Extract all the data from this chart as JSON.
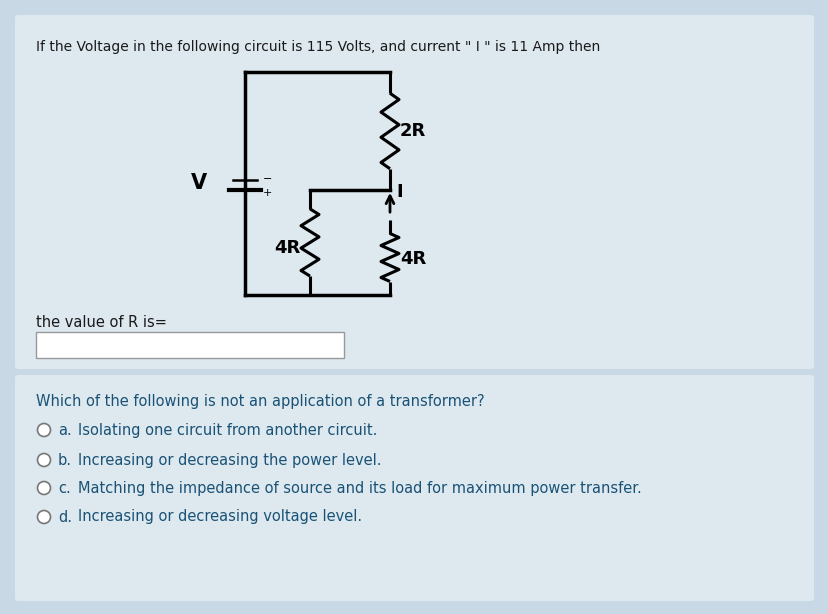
{
  "page_bg": "#c8d8e4",
  "top_section_bg": "#dde8ef",
  "bottom_section_bg": "#dde8ef",
  "title_q1": "If the Voltage in the following circuit is 115 Volts, and current \" I \" is 11 Amp then",
  "title_q1_color": "#1a1a1a",
  "label_value_of_R": "the value of R is=",
  "circuit_line_color": "#000000",
  "resistor_color": "#000000",
  "label_2R": "2R",
  "label_4R_left": "4R",
  "label_4R_right": "4R",
  "label_V": "V",
  "label_I": "I",
  "q2_text": "Which of the following is not an application of a transformer?",
  "q2_color": "#1a5276",
  "options": [
    {
      "letter": "a.",
      "text": "Isolating one circuit from another circuit."
    },
    {
      "letter": "b.",
      "text": "Increasing or decreasing the power level."
    },
    {
      "letter": "c.",
      "text": "Matching the impedance of source and its load for maximum power transfer."
    },
    {
      "letter": "d.",
      "text": "Increasing or decreasing voltage level."
    }
  ],
  "option_color": "#1a5276",
  "circle_color": "#777777"
}
